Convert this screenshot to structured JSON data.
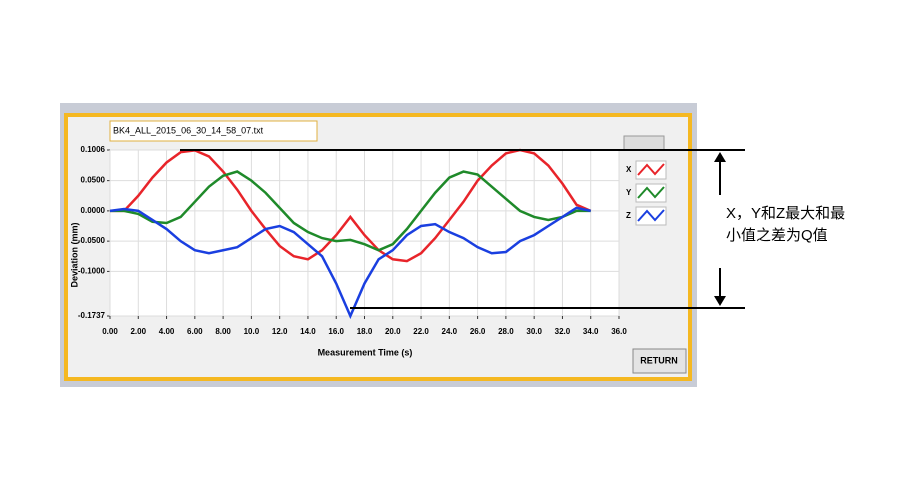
{
  "file_name": "BK4_ALL_2015_06_30_14_58_07.txt",
  "button": "RETURN",
  "annotation": [
    "X，Y和Z最大和最",
    "小值之差为Q值"
  ],
  "chart_data": {
    "type": "line",
    "ylabel": "Deviation (mm)",
    "xlabel": "Measurement Time (s)",
    "xlim": [
      0,
      36
    ],
    "ylim": [
      -0.1737,
      0.1006
    ],
    "grid": true,
    "xticks": [
      {
        "value": 0,
        "label": "0.00"
      },
      {
        "value": 2,
        "label": "2.00"
      },
      {
        "value": 4,
        "label": "4.00"
      },
      {
        "value": 6,
        "label": "6.00"
      },
      {
        "value": 8,
        "label": "8.00"
      },
      {
        "value": 10,
        "label": "10.0"
      },
      {
        "value": 12,
        "label": "12.0"
      },
      {
        "value": 14,
        "label": "14.0"
      },
      {
        "value": 16,
        "label": "16.0"
      },
      {
        "value": 18,
        "label": "18.0"
      },
      {
        "value": 20,
        "label": "20.0"
      },
      {
        "value": 22,
        "label": "22.0"
      },
      {
        "value": 24,
        "label": "24.0"
      },
      {
        "value": 26,
        "label": "26.0"
      },
      {
        "value": 28,
        "label": "28.0"
      },
      {
        "value": 30,
        "label": "30.0"
      },
      {
        "value": 32,
        "label": "32.0"
      },
      {
        "value": 34,
        "label": "34.0"
      },
      {
        "value": 36,
        "label": "36.0"
      }
    ],
    "yticks": [
      {
        "value": 0.1006,
        "label": "0.1006"
      },
      {
        "value": 0.05,
        "label": "0.0500"
      },
      {
        "value": 0,
        "label": "0.0000"
      },
      {
        "value": -0.05,
        "label": "-0.0500"
      },
      {
        "value": -0.1,
        "label": "-0.1000"
      },
      {
        "value": -0.1737,
        "label": "-0.1737"
      }
    ],
    "x": [
      0,
      1,
      2,
      3,
      4,
      5,
      6,
      7,
      8,
      9,
      10,
      11,
      12,
      13,
      14,
      15,
      16,
      17,
      18,
      19,
      20,
      21,
      22,
      23,
      24,
      25,
      26,
      27,
      28,
      29,
      30,
      31,
      32,
      33,
      34
    ],
    "series": [
      {
        "name": "X",
        "color": "#e8242a",
        "values": [
          0,
          0,
          0.025,
          0.055,
          0.08,
          0.097,
          0.1,
          0.09,
          0.065,
          0.035,
          0,
          -0.03,
          -0.058,
          -0.075,
          -0.08,
          -0.065,
          -0.04,
          -0.01,
          -0.04,
          -0.065,
          -0.08,
          -0.083,
          -0.07,
          -0.045,
          -0.015,
          0.015,
          0.05,
          0.075,
          0.095,
          0.1006,
          0.095,
          0.075,
          0.045,
          0.01,
          0
        ]
      },
      {
        "name": "Y",
        "color": "#1f8a2a",
        "values": [
          0,
          0,
          -0.005,
          -0.018,
          -0.02,
          -0.01,
          0.015,
          0.04,
          0.058,
          0.065,
          0.05,
          0.03,
          0.005,
          -0.02,
          -0.035,
          -0.045,
          -0.05,
          -0.048,
          -0.055,
          -0.065,
          -0.055,
          -0.03,
          0,
          0.03,
          0.055,
          0.065,
          0.06,
          0.04,
          0.02,
          0,
          -0.01,
          -0.015,
          -0.01,
          0,
          0
        ]
      },
      {
        "name": "Z",
        "color": "#1a3fe0",
        "values": [
          0,
          0.003,
          0,
          -0.015,
          -0.03,
          -0.05,
          -0.065,
          -0.07,
          -0.065,
          -0.06,
          -0.045,
          -0.03,
          -0.025,
          -0.035,
          -0.055,
          -0.075,
          -0.12,
          -0.1737,
          -0.12,
          -0.08,
          -0.065,
          -0.04,
          -0.025,
          -0.022,
          -0.035,
          -0.045,
          -0.06,
          -0.07,
          -0.068,
          -0.05,
          -0.04,
          -0.025,
          -0.01,
          0.005,
          0
        ]
      }
    ]
  }
}
